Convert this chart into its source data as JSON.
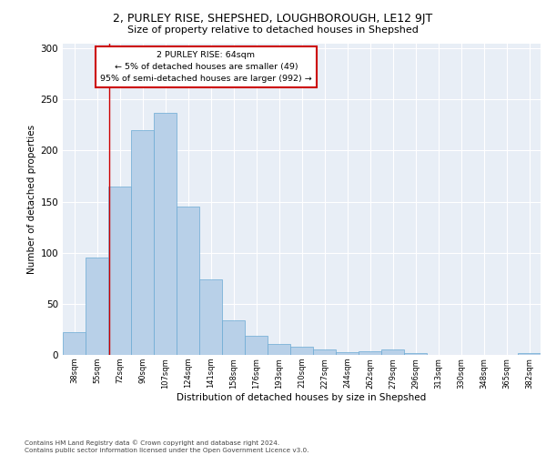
{
  "title": "2, PURLEY RISE, SHEPSHED, LOUGHBOROUGH, LE12 9JT",
  "subtitle": "Size of property relative to detached houses in Shepshed",
  "xlabel": "Distribution of detached houses by size in Shepshed",
  "ylabel": "Number of detached properties",
  "bar_color": "#b8d0e8",
  "bar_edge_color": "#6aaad4",
  "background_color": "#e8eef6",
  "grid_color": "#ffffff",
  "annotation_box_text": "2 PURLEY RISE: 64sqm\n← 5% of detached houses are smaller (49)\n95% of semi-detached houses are larger (992) →",
  "annotation_box_color": "#ffffff",
  "annotation_box_edge_color": "#cc0000",
  "annotation_line_color": "#cc0000",
  "footer_text": "Contains HM Land Registry data © Crown copyright and database right 2024.\nContains public sector information licensed under the Open Government Licence v3.0.",
  "categories": [
    "38sqm",
    "55sqm",
    "72sqm",
    "90sqm",
    "107sqm",
    "124sqm",
    "141sqm",
    "158sqm",
    "176sqm",
    "193sqm",
    "210sqm",
    "227sqm",
    "244sqm",
    "262sqm",
    "279sqm",
    "296sqm",
    "313sqm",
    "330sqm",
    "348sqm",
    "365sqm",
    "382sqm"
  ],
  "bar_heights": [
    22,
    95,
    165,
    220,
    237,
    145,
    74,
    34,
    19,
    11,
    8,
    5,
    3,
    4,
    5,
    2,
    0,
    0,
    0,
    0,
    2
  ],
  "ylim": [
    0,
    305
  ],
  "yticks": [
    0,
    50,
    100,
    150,
    200,
    250,
    300
  ],
  "figsize": [
    6.0,
    5.0
  ],
  "dpi": 100
}
